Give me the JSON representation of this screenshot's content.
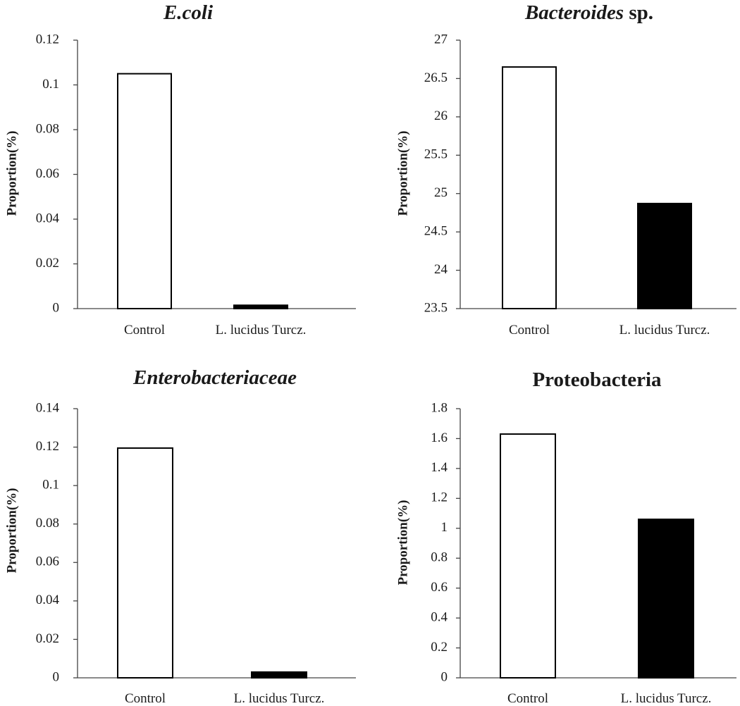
{
  "chart_data": [
    {
      "type": "bar",
      "title": "E.coli",
      "title_italic": true,
      "xlabel": "",
      "ylabel": "Proportion(%)",
      "categories": [
        "Control",
        "L. lucidus Turcz."
      ],
      "values": [
        0.105,
        0.0015
      ],
      "bar_colors": [
        "#ffffff",
        "#000000"
      ],
      "ylim": [
        0,
        0.12
      ],
      "yticks": [
        0,
        0.02,
        0.04,
        0.06,
        0.08,
        0.1,
        0.12
      ],
      "ytick_labels": [
        "0",
        "0.02",
        "0.04",
        "0.06",
        "0.08",
        "0.1",
        "0.12"
      ]
    },
    {
      "type": "bar",
      "title": "Bacteroides sp.",
      "title_italic_part": "Bacteroides",
      "title_plain_part": " sp.",
      "xlabel": "",
      "ylabel": "Proportion(%)",
      "categories": [
        "Control",
        "L. lucidus Turcz."
      ],
      "values": [
        26.65,
        24.87
      ],
      "bar_colors": [
        "#ffffff",
        "#000000"
      ],
      "ylim": [
        23.5,
        27
      ],
      "yticks": [
        23.5,
        24,
        24.5,
        25,
        25.5,
        26,
        26.5,
        27
      ],
      "ytick_labels": [
        "23.5",
        "24",
        "24.5",
        "25",
        "25.5",
        "26",
        "26.5",
        "27"
      ]
    },
    {
      "type": "bar",
      "title": "Enterobacteriaceae",
      "title_italic": true,
      "xlabel": "",
      "ylabel": "Proportion(%)",
      "categories": [
        "Control",
        "L. lucidus Turcz."
      ],
      "values": [
        0.1195,
        0.003
      ],
      "bar_colors": [
        "#ffffff",
        "#000000"
      ],
      "ylim": [
        0,
        0.14
      ],
      "yticks": [
        0,
        0.02,
        0.04,
        0.06,
        0.08,
        0.1,
        0.12,
        0.14
      ],
      "ytick_labels": [
        "0",
        "0.02",
        "0.04",
        "0.06",
        "0.08",
        "0.1",
        "0.12",
        "0.14"
      ]
    },
    {
      "type": "bar",
      "title": "Proteobacteria",
      "title_italic": false,
      "xlabel": "",
      "ylabel": "Proportion(%)",
      "categories": [
        "Control",
        "L. lucidus Turcz."
      ],
      "values": [
        1.63,
        1.06
      ],
      "bar_colors": [
        "#ffffff",
        "#000000"
      ],
      "ylim": [
        0,
        1.8
      ],
      "yticks": [
        0,
        0.2,
        0.4,
        0.6,
        0.8,
        1,
        1.2,
        1.4,
        1.6,
        1.8
      ],
      "ytick_labels": [
        "0",
        "0.2",
        "0.4",
        "0.6",
        "0.8",
        "1",
        "1.2",
        "1.4",
        "1.6",
        "1.8"
      ]
    }
  ]
}
